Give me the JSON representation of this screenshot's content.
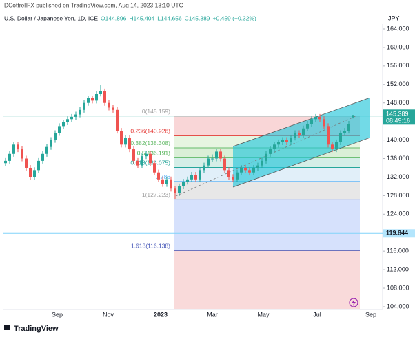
{
  "header": {
    "published": "DCottrellFX published on TradingView.com, Aug 14, 2023 13:10 UTC",
    "symbol": "U.S. Dollar / Japanese Yen, 1D, ICE",
    "ohlc_text": [
      "O144.896",
      "H145.404",
      "L144.656",
      "C145.389",
      "+0.459 (+0.32%)"
    ]
  },
  "chart_data": {
    "type": "candlestick",
    "currency": "JPY",
    "up_color": "#26a69a",
    "down_color": "#ef5350",
    "ohlc": [
      [
        135.0,
        136.1,
        134.4,
        135.5
      ],
      [
        135.5,
        137.6,
        134.9,
        137
      ],
      [
        137,
        139.6,
        136.4,
        139
      ],
      [
        139,
        139.6,
        137.4,
        138
      ],
      [
        138,
        138.6,
        135.4,
        136
      ],
      [
        136,
        136.6,
        133.4,
        134
      ],
      [
        134,
        134.6,
        131.4,
        132
      ],
      [
        132,
        134.1,
        131.4,
        133.5
      ],
      [
        133.5,
        136.1,
        132.9,
        135.5
      ],
      [
        135.5,
        137.6,
        134.9,
        137
      ],
      [
        137,
        139.1,
        136.4,
        138.5
      ],
      [
        138.5,
        140.6,
        137.9,
        140
      ],
      [
        140,
        142.1,
        139.4,
        141.5
      ],
      [
        141.5,
        143.6,
        140.9,
        143
      ],
      [
        143,
        144.4,
        142.4,
        143.8
      ],
      [
        143.8,
        145.1,
        143.2,
        144.5
      ],
      [
        144.5,
        145.6,
        143.9,
        145
      ],
      [
        145,
        146.1,
        144.4,
        145.5
      ],
      [
        145.5,
        147.1,
        144.9,
        146.5
      ],
      [
        146.5,
        148.6,
        145.9,
        148
      ],
      [
        148,
        149.6,
        147.4,
        149
      ],
      [
        149,
        149.6,
        147.9,
        148.5
      ],
      [
        148.5,
        150.6,
        147.9,
        150
      ],
      [
        150,
        151.9,
        149.4,
        150.5
      ],
      [
        150.5,
        151.1,
        147.4,
        148
      ],
      [
        148,
        148.6,
        146.4,
        147
      ],
      [
        147,
        147.6,
        145.9,
        146.5
      ],
      [
        146.5,
        147.1,
        141.4,
        142
      ],
      [
        142,
        142.6,
        138.4,
        139
      ],
      [
        139,
        141.1,
        138.4,
        140.5
      ],
      [
        140.5,
        141.1,
        137.4,
        138
      ],
      [
        138,
        138.6,
        134.9,
        135.5
      ],
      [
        135.5,
        136.1,
        133.9,
        134.5
      ],
      [
        134.5,
        137.1,
        133.9,
        136.5
      ],
      [
        136.5,
        137.6,
        135.9,
        137
      ],
      [
        137,
        137.6,
        134.4,
        135
      ],
      [
        135,
        135.6,
        132.4,
        133
      ],
      [
        133,
        133.6,
        130.9,
        131.5
      ],
      [
        131.5,
        132.1,
        129.9,
        130.5
      ],
      [
        130.5,
        132.1,
        129.9,
        131.5
      ],
      [
        131.5,
        132.1,
        128.9,
        129.5
      ],
      [
        129.5,
        130.1,
        127.2,
        128.5
      ],
      [
        128.5,
        130.6,
        127.9,
        130
      ],
      [
        130,
        131.6,
        129.4,
        131
      ],
      [
        131,
        132.1,
        130.4,
        131.5
      ],
      [
        131.5,
        133.1,
        130.9,
        132.5
      ],
      [
        132.5,
        133.1,
        130.9,
        131.5
      ],
      [
        131.5,
        134.1,
        130.9,
        133.5
      ],
      [
        133.5,
        135.1,
        132.9,
        134.5
      ],
      [
        134.5,
        136.6,
        133.9,
        136
      ],
      [
        136,
        136.9,
        135.2,
        136
      ],
      [
        136,
        138.1,
        135.4,
        137.5
      ],
      [
        137.5,
        138.1,
        135.4,
        136
      ],
      [
        136,
        136.6,
        132.9,
        133.5
      ],
      [
        133.5,
        134.1,
        131.4,
        132
      ],
      [
        132,
        132.6,
        130.9,
        131.5
      ],
      [
        131.5,
        133.6,
        130.9,
        133
      ],
      [
        133,
        134.6,
        132.4,
        134
      ],
      [
        134,
        134.6,
        132.9,
        133.5
      ],
      [
        133.5,
        134.1,
        132.4,
        133
      ],
      [
        133,
        134.6,
        132.4,
        134
      ],
      [
        134,
        135.1,
        133.4,
        134.5
      ],
      [
        134.5,
        136.1,
        133.9,
        135.5
      ],
      [
        135.5,
        137.6,
        134.9,
        137
      ],
      [
        137,
        138.6,
        136.4,
        138
      ],
      [
        138,
        139.6,
        137.4,
        139
      ],
      [
        139,
        140.1,
        138.4,
        139.5
      ],
      [
        139.5,
        140.6,
        138.9,
        140
      ],
      [
        140,
        140.6,
        138.9,
        139.5
      ],
      [
        139.5,
        141.1,
        138.9,
        140.5
      ],
      [
        140.5,
        142.1,
        139.9,
        141.5
      ],
      [
        141.5,
        142.1,
        140.4,
        141
      ],
      [
        141,
        143.1,
        140.4,
        142.5
      ],
      [
        142.5,
        144.1,
        141.9,
        143.5
      ],
      [
        143.5,
        145.1,
        142.9,
        144.5
      ],
      [
        144.5,
        145.6,
        143.9,
        145
      ],
      [
        145,
        145.6,
        143.9,
        144.5
      ],
      [
        144.5,
        145.1,
        142.4,
        143
      ],
      [
        143,
        143.6,
        138.4,
        139
      ],
      [
        139,
        139.6,
        137.4,
        138
      ],
      [
        138,
        140.1,
        137.4,
        139.5
      ],
      [
        139.5,
        142.1,
        138.9,
        141.5
      ],
      [
        141.5,
        142.6,
        140.9,
        142
      ],
      [
        142,
        144.1,
        141.4,
        143.5
      ],
      [
        144.896,
        145.404,
        144.656,
        145.389
      ]
    ],
    "xtick_labels": [
      "Sep",
      "Nov",
      "2023",
      "Mar",
      "May",
      "Jul",
      "Sep"
    ],
    "ylim": [
      103.4,
      165.04
    ],
    "yticks": [
      {
        "value": 104,
        "label": "104.000"
      },
      {
        "value": 108,
        "label": "108.000"
      },
      {
        "value": 112,
        "label": "112.000"
      },
      {
        "value": 116,
        "label": "116.000"
      },
      {
        "value": 120,
        "label": "120.000"
      },
      {
        "value": 124,
        "label": "124.000"
      },
      {
        "value": 128,
        "label": "128.000"
      },
      {
        "value": 132,
        "label": "132.000"
      },
      {
        "value": 136,
        "label": "136.000"
      },
      {
        "value": 140,
        "label": "140.000"
      },
      {
        "value": 144,
        "label": "144.000"
      },
      {
        "value": 148,
        "label": "148.000"
      },
      {
        "value": 152,
        "label": "152.000"
      },
      {
        "value": 156,
        "label": "156.000"
      },
      {
        "value": 160,
        "label": "160.000"
      },
      {
        "value": 164,
        "label": "164.000"
      }
    ],
    "fib_levels": [
      {
        "value": 145.159,
        "label": "0(145.159)",
        "color": "#9e9e9e",
        "fill": "#f8cfd0"
      },
      {
        "value": 140.926,
        "label": "0.236(140.926)",
        "color": "#e53935",
        "fill": "#e3f3dc"
      },
      {
        "value": 138.308,
        "label": "0.382(138.308)",
        "color": "#66bb6a",
        "fill": "#d3ecd0"
      },
      {
        "value": 136.191,
        "label": "0.5(136.191)",
        "color": "#4caf50",
        "fill": "#cdebe3"
      },
      {
        "value": 134.075,
        "label": "0.618(134.075)",
        "color": "#26a69a",
        "fill": "#dcecf8"
      },
      {
        "value": 131.06,
        "label": "0.786",
        "color": "#64b5f6",
        "fill": "#e3e3e3"
      },
      {
        "value": 127.223,
        "label": "1(127.223)",
        "color": "#9e9e9e",
        "fill": "#cfdcfb"
      },
      {
        "value": 116.138,
        "label": "1.618(116.138)",
        "color": "#3f51b5",
        "fill": "#f8d3d4"
      }
    ],
    "last_price": {
      "value": 145.389,
      "label": "145.389",
      "countdown": "08:49:16"
    },
    "hline": {
      "value": 119.844,
      "label": "119.844"
    }
  }
}
